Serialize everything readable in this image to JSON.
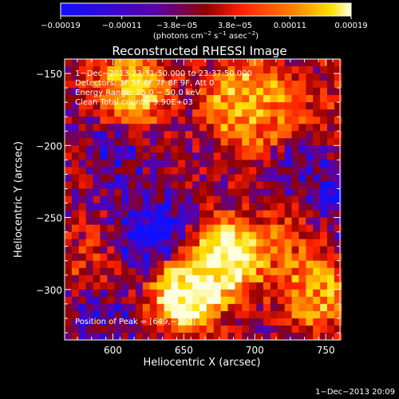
{
  "colorbar": {
    "tick_labels": [
      "−0.00019",
      "−0.00011",
      "−3.8e−05",
      "3.8e−05",
      "0.00011",
      "0.00019"
    ],
    "tick_values": [
      -0.00019,
      -0.00011,
      -3.8e-05,
      3.8e-05,
      0.00011,
      0.00019
    ],
    "range": [
      -0.00019,
      0.00019
    ],
    "colors": [
      "#1010ff",
      "#5a00a8",
      "#900000",
      "#ff2000",
      "#ff8000",
      "#ffe000",
      "#ffffe0"
    ]
  },
  "unit_label": {
    "prefix": "(photons cm",
    "exp1": "−2",
    "mid1": " s",
    "exp2": "−1",
    "mid2": " asec",
    "exp3": "−2",
    "suffix": ")"
  },
  "overlay": {
    "time_range": "1−Dec−2013 23:31:50.000 to 23:37:50.000",
    "detectors": "Detectors: 3F 5F 6F 7F 8F 9F, Att 0",
    "energy": "Energy Range: 25.0 − 50.0 keV",
    "algo": "Clean     Total counts: 9.90E+03",
    "peak": "Position of Peak = [649,−300]"
  },
  "footer_date": "1−Dec−2013 20:09",
  "chart_data": {
    "type": "heatmap",
    "title": "Reconstructed RHESSI Image",
    "xlabel": "Heliocentric X (arcsec)",
    "ylabel": "Heliocentric Y (arcsec)",
    "xlim": [
      566,
      760
    ],
    "ylim": [
      -335,
      -140
    ],
    "xticks": [
      600,
      650,
      700,
      750
    ],
    "yticks": [
      -150,
      -200,
      -250,
      -300
    ],
    "ytick_labels": [
      "−150",
      "−200",
      "−250",
      "−300"
    ],
    "peak": [
      649,
      -300
    ],
    "bright_regions": [
      {
        "x": 680,
        "y": -275,
        "level": 0.95
      },
      {
        "x": 650,
        "y": -300,
        "level": 1.0
      },
      {
        "x": 610,
        "y": -160,
        "level": 0.8
      },
      {
        "x": 690,
        "y": -165,
        "level": 0.75
      },
      {
        "x": 700,
        "y": -180,
        "level": 0.65
      },
      {
        "x": 740,
        "y": -300,
        "level": 0.7
      },
      {
        "x": 730,
        "y": -260,
        "level": 0.55
      },
      {
        "x": 580,
        "y": -280,
        "level": 0.45
      },
      {
        "x": 745,
        "y": -170,
        "level": 0.45
      }
    ],
    "dim_regions": [
      {
        "x": 625,
        "y": -260,
        "level": 0.0
      },
      {
        "x": 600,
        "y": -200,
        "level": 0.15
      },
      {
        "x": 725,
        "y": -215,
        "level": 0.15
      },
      {
        "x": 755,
        "y": -240,
        "level": 0.1
      },
      {
        "x": 590,
        "y": -320,
        "level": 0.15
      }
    ]
  }
}
